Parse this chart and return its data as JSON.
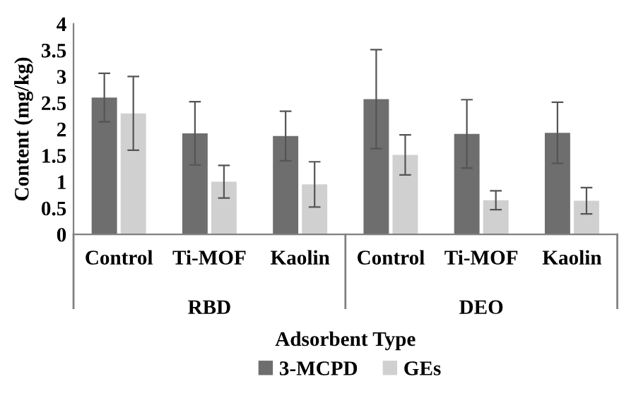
{
  "chart_data": {
    "type": "bar",
    "xlabel": "Adsorbent Type",
    "ylabel": "Content (mg/kg)",
    "categories": [
      "Control",
      "Ti-MOF",
      "Kaolin",
      "Control",
      "Ti-MOF",
      "Kaolin"
    ],
    "series": [
      {
        "name": "3-MCPD",
        "color": "#6e6e6e",
        "values": [
          2.6,
          1.92,
          1.87,
          2.57,
          1.91,
          1.93
        ],
        "errors": [
          0.46,
          0.6,
          0.47,
          0.94,
          0.65,
          0.58
        ]
      },
      {
        "name": "GEs",
        "color": "#d0d0d0",
        "values": [
          2.3,
          1.0,
          0.95,
          1.51,
          0.65,
          0.64
        ],
        "errors": [
          0.7,
          0.31,
          0.43,
          0.38,
          0.18,
          0.25
        ]
      }
    ],
    "annotations": [
      "RBD",
      "DEO"
    ],
    "ylim": [
      0,
      4
    ],
    "yticks": [
      0,
      0.5,
      1,
      1.5,
      2,
      2.5,
      3,
      3.5,
      4
    ],
    "grid": false,
    "legend": "bottom"
  }
}
